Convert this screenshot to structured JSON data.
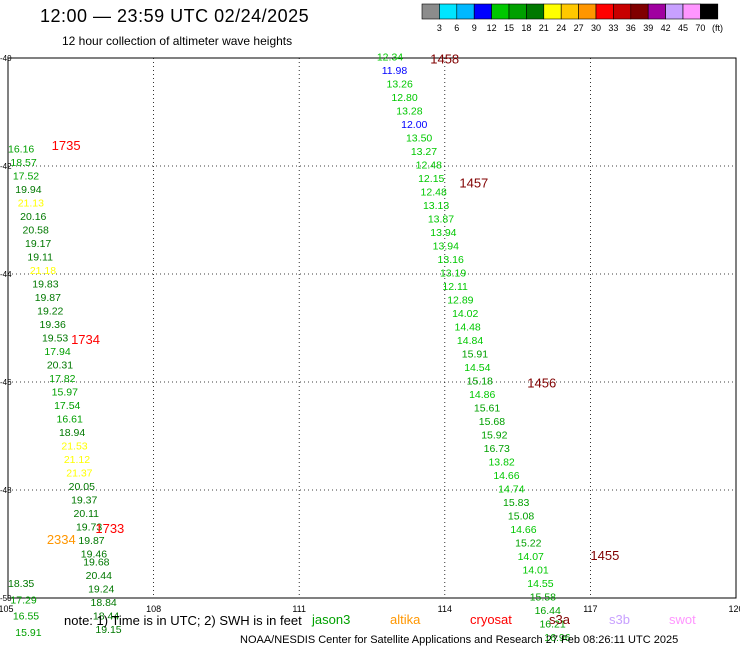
{
  "header": {
    "title": "12:00 — 23:59 UTC 02/24/2025",
    "subtitle": "12 hour collection of altimeter wave heights"
  },
  "color_scale": {
    "labels": [
      "3",
      "6",
      "9",
      "12",
      "15",
      "18",
      "21",
      "24",
      "27",
      "30",
      "33",
      "36",
      "39",
      "42",
      "45",
      "70"
    ],
    "unit": "(ft)",
    "colors": [
      "#8c8c8c",
      "#00e5ff",
      "#00b8ff",
      "#0000ff",
      "#00c800",
      "#00a000",
      "#007800",
      "#ffff00",
      "#ffc800",
      "#ff9600",
      "#ff0000",
      "#c80000",
      "#800000",
      "#a000a0",
      "#c8a0ff",
      "#ff96ff",
      "#000000"
    ]
  },
  "footer": {
    "note": "note: 1) Time is in UTC; 2) SWH is in feet",
    "credit": "NOAA/NESDIS Center for Satellite Applications and Research     27 Feb 08:26:11 UTC 2025"
  },
  "legend": [
    {
      "name": "jason3",
      "color": "#00a000"
    },
    {
      "name": "altika",
      "color": "#ff9600"
    },
    {
      "name": "cryosat",
      "color": "#ff0000"
    },
    {
      "name": "s3a",
      "color": "#800000"
    },
    {
      "name": "s3b",
      "color": "#c8a0ff"
    },
    {
      "name": "swot",
      "color": "#ff96ff"
    }
  ],
  "chart_data": {
    "type": "scatter",
    "xlim": [
      105,
      120
    ],
    "ylim": [
      -50,
      -40
    ],
    "x_ticks": [
      "105",
      "108",
      "111",
      "114",
      "117",
      "120"
    ],
    "y_ticks": [
      "-40",
      "-42",
      "-44",
      "-46",
      "-48",
      "-50"
    ],
    "grid": true,
    "pass_labels": [
      {
        "text": "1458",
        "x": 113.7,
        "y": -40.1,
        "color": "#800000"
      },
      {
        "text": "1457",
        "x": 114.3,
        "y": -42.4,
        "color": "#800000"
      },
      {
        "text": "1456",
        "x": 115.7,
        "y": -46.1,
        "color": "#800000"
      },
      {
        "text": "1455",
        "x": 117.0,
        "y": -49.3,
        "color": "#800000"
      },
      {
        "text": "1735",
        "x": 105.9,
        "y": -41.7,
        "color": "#ff0000"
      },
      {
        "text": "1734",
        "x": 106.3,
        "y": -45.3,
        "color": "#ff0000"
      },
      {
        "text": "1733",
        "x": 106.8,
        "y": -48.8,
        "color": "#ff0000"
      },
      {
        "text": "2334",
        "x": 105.8,
        "y": -49.0,
        "color": "#ff9600"
      }
    ],
    "points": [
      {
        "x": 112.6,
        "y": -40.05,
        "v": "12.34",
        "c": "#00c800"
      },
      {
        "x": 112.7,
        "y": -40.3,
        "v": "11.98",
        "c": "#0000ff"
      },
      {
        "x": 112.8,
        "y": -40.55,
        "v": "13.26",
        "c": "#00c800"
      },
      {
        "x": 112.9,
        "y": -40.8,
        "v": "12.80",
        "c": "#00c800"
      },
      {
        "x": 113.0,
        "y": -41.05,
        "v": "13.28",
        "c": "#00c800"
      },
      {
        "x": 113.1,
        "y": -41.3,
        "v": "12.00",
        "c": "#0000ff"
      },
      {
        "x": 113.2,
        "y": -41.55,
        "v": "13.50",
        "c": "#00c800"
      },
      {
        "x": 113.3,
        "y": -41.8,
        "v": "13.27",
        "c": "#00c800"
      },
      {
        "x": 113.4,
        "y": -42.05,
        "v": "12.48",
        "c": "#00c800"
      },
      {
        "x": 113.45,
        "y": -42.3,
        "v": "12.15",
        "c": "#00c800"
      },
      {
        "x": 113.5,
        "y": -42.55,
        "v": "12.48",
        "c": "#00c800"
      },
      {
        "x": 113.55,
        "y": -42.8,
        "v": "13.13",
        "c": "#00c800"
      },
      {
        "x": 113.65,
        "y": -43.05,
        "v": "13.87",
        "c": "#00c800"
      },
      {
        "x": 113.7,
        "y": -43.3,
        "v": "13.94",
        "c": "#00c800"
      },
      {
        "x": 113.75,
        "y": -43.55,
        "v": "13.94",
        "c": "#00c800"
      },
      {
        "x": 113.85,
        "y": -43.8,
        "v": "13.16",
        "c": "#00c800"
      },
      {
        "x": 113.9,
        "y": -44.05,
        "v": "13.19",
        "c": "#00c800"
      },
      {
        "x": 113.95,
        "y": -44.3,
        "v": "12.11",
        "c": "#00c800"
      },
      {
        "x": 114.05,
        "y": -44.55,
        "v": "12.89",
        "c": "#00c800"
      },
      {
        "x": 114.15,
        "y": -44.8,
        "v": "14.02",
        "c": "#00c800"
      },
      {
        "x": 114.2,
        "y": -45.05,
        "v": "14.48",
        "c": "#00c800"
      },
      {
        "x": 114.25,
        "y": -45.3,
        "v": "14.84",
        "c": "#00c800"
      },
      {
        "x": 114.35,
        "y": -45.55,
        "v": "15.91",
        "c": "#00a000"
      },
      {
        "x": 114.4,
        "y": -45.8,
        "v": "14.54",
        "c": "#00c800"
      },
      {
        "x": 114.45,
        "y": -46.05,
        "v": "15.18",
        "c": "#00a000"
      },
      {
        "x": 114.5,
        "y": -46.3,
        "v": "14.86",
        "c": "#00c800"
      },
      {
        "x": 114.6,
        "y": -46.55,
        "v": "15.61",
        "c": "#00a000"
      },
      {
        "x": 114.7,
        "y": -46.8,
        "v": "15.68",
        "c": "#00a000"
      },
      {
        "x": 114.75,
        "y": -47.05,
        "v": "15.92",
        "c": "#00a000"
      },
      {
        "x": 114.8,
        "y": -47.3,
        "v": "16.73",
        "c": "#00a000"
      },
      {
        "x": 114.9,
        "y": -47.55,
        "v": "13.82",
        "c": "#00c800"
      },
      {
        "x": 115.0,
        "y": -47.8,
        "v": "14.66",
        "c": "#00c800"
      },
      {
        "x": 115.1,
        "y": -48.05,
        "v": "14.74",
        "c": "#00c800"
      },
      {
        "x": 115.2,
        "y": -48.3,
        "v": "15.83",
        "c": "#00a000"
      },
      {
        "x": 115.3,
        "y": -48.55,
        "v": "15.08",
        "c": "#00a000"
      },
      {
        "x": 115.35,
        "y": -48.8,
        "v": "14.66",
        "c": "#00c800"
      },
      {
        "x": 115.45,
        "y": -49.05,
        "v": "15.22",
        "c": "#00a000"
      },
      {
        "x": 115.5,
        "y": -49.3,
        "v": "14.07",
        "c": "#00c800"
      },
      {
        "x": 115.6,
        "y": -49.55,
        "v": "14.01",
        "c": "#00c800"
      },
      {
        "x": 115.7,
        "y": -49.8,
        "v": "14.55",
        "c": "#00c800"
      },
      {
        "x": 115.75,
        "y": -50.05,
        "v": "15.58",
        "c": "#00a000"
      },
      {
        "x": 115.85,
        "y": -50.3,
        "v": "16.44",
        "c": "#00a000"
      },
      {
        "x": 115.95,
        "y": -50.55,
        "v": "16.21",
        "c": "#00a000"
      },
      {
        "x": 116.05,
        "y": -50.8,
        "v": "16.96",
        "c": "#00a000"
      },
      {
        "x": 105.0,
        "y": -41.75,
        "v": "16.16",
        "c": "#00a000"
      },
      {
        "x": 105.05,
        "y": -42.0,
        "v": "18.57",
        "c": "#00a000"
      },
      {
        "x": 105.1,
        "y": -42.25,
        "v": "17.52",
        "c": "#00a000"
      },
      {
        "x": 105.15,
        "y": -42.5,
        "v": "19.94",
        "c": "#007800"
      },
      {
        "x": 105.2,
        "y": -42.75,
        "v": "21.13",
        "c": "#ffff00"
      },
      {
        "x": 105.25,
        "y": -43.0,
        "v": "20.16",
        "c": "#007800"
      },
      {
        "x": 105.3,
        "y": -43.25,
        "v": "20.58",
        "c": "#007800"
      },
      {
        "x": 105.35,
        "y": -43.5,
        "v": "19.17",
        "c": "#007800"
      },
      {
        "x": 105.4,
        "y": -43.75,
        "v": "19.11",
        "c": "#007800"
      },
      {
        "x": 105.45,
        "y": -44.0,
        "v": "21.18",
        "c": "#ffff00"
      },
      {
        "x": 105.5,
        "y": -44.25,
        "v": "19.83",
        "c": "#007800"
      },
      {
        "x": 105.55,
        "y": -44.5,
        "v": "19.87",
        "c": "#007800"
      },
      {
        "x": 105.6,
        "y": -44.75,
        "v": "19.22",
        "c": "#007800"
      },
      {
        "x": 105.65,
        "y": -45.0,
        "v": "19.36",
        "c": "#007800"
      },
      {
        "x": 105.7,
        "y": -45.25,
        "v": "19.53",
        "c": "#007800"
      },
      {
        "x": 105.75,
        "y": -45.5,
        "v": "17.94",
        "c": "#00a000"
      },
      {
        "x": 105.8,
        "y": -45.75,
        "v": "20.31",
        "c": "#007800"
      },
      {
        "x": 105.85,
        "y": -46.0,
        "v": "17.82",
        "c": "#00a000"
      },
      {
        "x": 105.9,
        "y": -46.25,
        "v": "15.97",
        "c": "#00a000"
      },
      {
        "x": 105.95,
        "y": -46.5,
        "v": "17.54",
        "c": "#00a000"
      },
      {
        "x": 106.0,
        "y": -46.75,
        "v": "16.61",
        "c": "#00a000"
      },
      {
        "x": 106.05,
        "y": -47.0,
        "v": "18.94",
        "c": "#007800"
      },
      {
        "x": 106.1,
        "y": -47.25,
        "v": "21.53",
        "c": "#ffff00"
      },
      {
        "x": 106.15,
        "y": -47.5,
        "v": "21.12",
        "c": "#ffff00"
      },
      {
        "x": 106.2,
        "y": -47.75,
        "v": "21.37",
        "c": "#ffff00"
      },
      {
        "x": 106.25,
        "y": -48.0,
        "v": "20.05",
        "c": "#007800"
      },
      {
        "x": 106.3,
        "y": -48.25,
        "v": "19.37",
        "c": "#007800"
      },
      {
        "x": 106.35,
        "y": -48.5,
        "v": "20.11",
        "c": "#007800"
      },
      {
        "x": 106.4,
        "y": -48.75,
        "v": "19.73",
        "c": "#007800"
      },
      {
        "x": 106.45,
        "y": -49.0,
        "v": "19.87",
        "c": "#007800"
      },
      {
        "x": 106.5,
        "y": -49.25,
        "v": "19.46",
        "c": "#007800"
      },
      {
        "x": 106.55,
        "y": -49.4,
        "v": "19.68",
        "c": "#007800"
      },
      {
        "x": 106.6,
        "y": -49.65,
        "v": "20.44",
        "c": "#007800"
      },
      {
        "x": 106.65,
        "y": -49.9,
        "v": "19.24",
        "c": "#007800"
      },
      {
        "x": 106.7,
        "y": -50.15,
        "v": "18.84",
        "c": "#007800"
      },
      {
        "x": 106.75,
        "y": -50.4,
        "v": "18.44",
        "c": "#007800"
      },
      {
        "x": 106.8,
        "y": -50.65,
        "v": "19.15",
        "c": "#007800"
      },
      {
        "x": 105.0,
        "y": -49.8,
        "v": "18.35",
        "c": "#007800"
      },
      {
        "x": 105.05,
        "y": -50.1,
        "v": "17.29",
        "c": "#00a000"
      },
      {
        "x": 105.1,
        "y": -50.4,
        "v": "16.55",
        "c": "#00a000"
      },
      {
        "x": 105.15,
        "y": -50.7,
        "v": "15.91",
        "c": "#00a000"
      }
    ]
  }
}
